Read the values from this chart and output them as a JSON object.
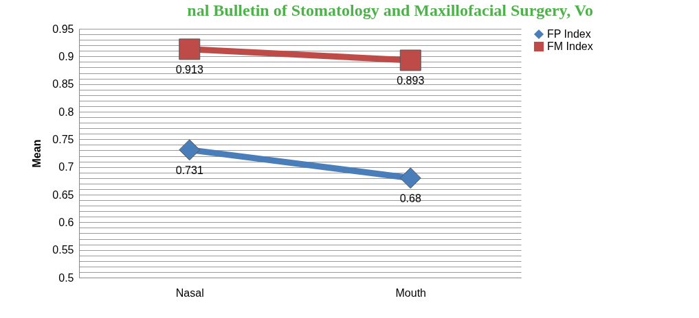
{
  "chart_data": {
    "type": "line",
    "title": "nal Bulletin of Stomatology and Maxillofacial Surgery, Vo",
    "ylabel": "Mean",
    "categories": [
      "Nasal",
      "Mouth"
    ],
    "series": [
      {
        "name": "FP Index",
        "color": "#4a7ebb",
        "values": [
          0.731,
          0.68
        ],
        "marker": "diamond"
      },
      {
        "name": "FM Index",
        "color": "#be4b48",
        "values": [
          0.913,
          0.893
        ],
        "marker": "square"
      }
    ],
    "ylim": [
      0.5,
      0.95
    ],
    "yticks": [
      0.5,
      0.55,
      0.6,
      0.65,
      0.7,
      0.75,
      0.8,
      0.85,
      0.9,
      0.95
    ],
    "grid": "y",
    "legend": "right",
    "data_labels": true
  }
}
